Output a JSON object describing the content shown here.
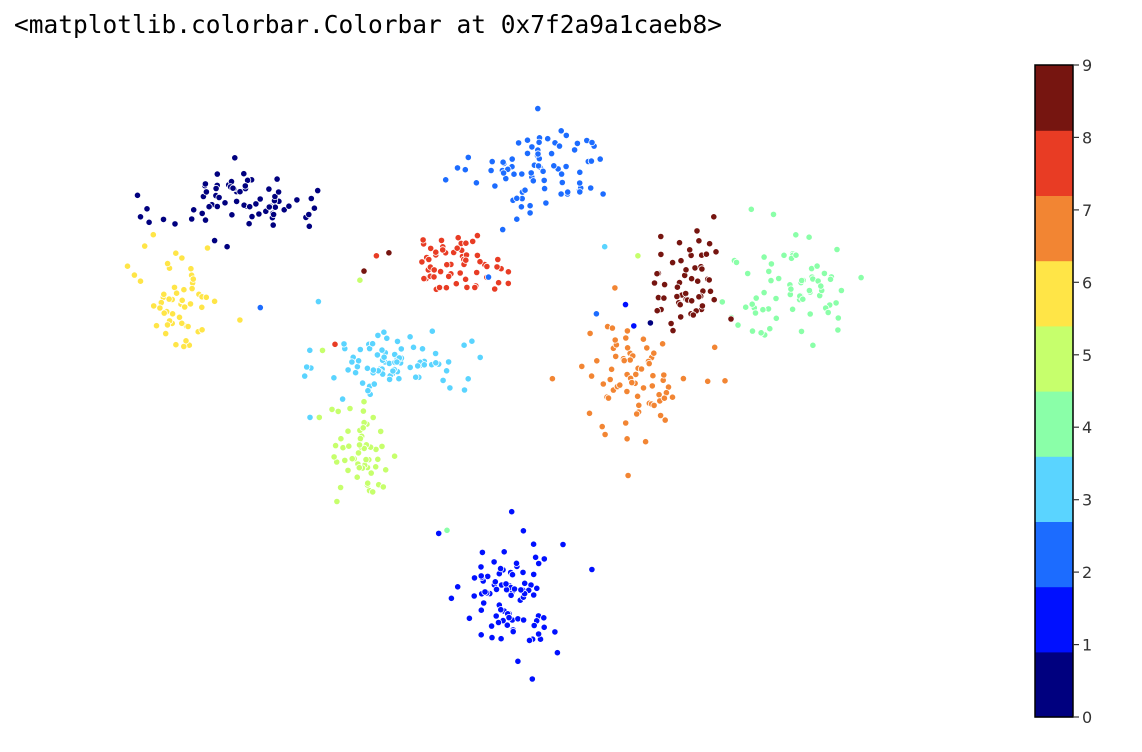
{
  "cell_output": {
    "text": "<matplotlib.colorbar.Colorbar at 0x7f2a9a1caeb8>"
  },
  "colors": {
    "point_outline": "#ffffff",
    "colorbar_frame": "#000000",
    "tick_text": "#333333"
  },
  "chart_data": {
    "type": "scatter",
    "title": "",
    "xlabel": "",
    "ylabel": "",
    "axes_visible": false,
    "grid": false,
    "marker": "filled circle with white edge",
    "x_range": [
      0,
      100
    ],
    "y_range": [
      0,
      100
    ],
    "colormap": "jet",
    "colorbar": {
      "position": "right",
      "range": [
        0,
        9
      ],
      "n_discrete_colors": 10,
      "ticks": [
        "0",
        "1",
        "2",
        "3",
        "4",
        "5",
        "6",
        "7",
        "8",
        "9"
      ],
      "colors": [
        "#00007f",
        "#0010ff",
        "#1c6cff",
        "#5ad4ff",
        "#8affa8",
        "#c6ff6c",
        "#ffe547",
        "#f28533",
        "#e83c24",
        "#761510"
      ]
    },
    "clusters": [
      {
        "label": 0,
        "center": [
          14.5,
          82.0
        ],
        "spread": [
          6.5,
          3.2
        ],
        "count": 70,
        "shape": "arc"
      },
      {
        "label": 1,
        "center": [
          47.8,
          16.5
        ],
        "spread": [
          4.0,
          7.0
        ],
        "count": 90
      },
      {
        "label": 2,
        "center": [
          51.5,
          86.0
        ],
        "spread": [
          5.5,
          5.0
        ],
        "count": 80
      },
      {
        "label": 3,
        "center": [
          33.5,
          54.5
        ],
        "spread": [
          5.5,
          3.5
        ],
        "count": 85
      },
      {
        "label": 4,
        "center": [
          81.5,
          67.0
        ],
        "spread": [
          6.0,
          6.0
        ],
        "count": 70
      },
      {
        "label": 5,
        "center": [
          30.0,
          39.0
        ],
        "spread": [
          2.8,
          5.5
        ],
        "count": 55
      },
      {
        "label": 6,
        "center": [
          8.0,
          65.5
        ],
        "spread": [
          3.2,
          6.0
        ],
        "count": 55
      },
      {
        "label": 7,
        "center": [
          62.5,
          52.0
        ],
        "spread": [
          4.5,
          6.5
        ],
        "count": 75
      },
      {
        "label": 8,
        "center": [
          41.0,
          71.0
        ],
        "spread": [
          4.0,
          3.0
        ],
        "count": 60
      },
      {
        "label": 9,
        "center": [
          69.0,
          67.0
        ],
        "spread": [
          3.0,
          6.0
        ],
        "count": 55
      }
    ],
    "stray_points": [
      {
        "label": 0,
        "x": 12.0,
        "y": 74.5
      },
      {
        "label": 0,
        "x": 13.5,
        "y": 73.5
      },
      {
        "label": 2,
        "x": 17.5,
        "y": 63.5
      },
      {
        "label": 3,
        "x": 24.5,
        "y": 64.5
      },
      {
        "label": 1,
        "x": 39.0,
        "y": 26.5
      },
      {
        "label": 4,
        "x": 40.0,
        "y": 27.0
      },
      {
        "label": 2,
        "x": 45.0,
        "y": 68.5
      },
      {
        "label": 2,
        "x": 58.0,
        "y": 62.5
      },
      {
        "label": 3,
        "x": 43.0,
        "y": 58.0
      },
      {
        "label": 3,
        "x": 23.5,
        "y": 45.5
      },
      {
        "label": 8,
        "x": 26.5,
        "y": 57.5
      },
      {
        "label": 8,
        "x": 31.5,
        "y": 72.0
      },
      {
        "label": 9,
        "x": 30.0,
        "y": 69.5
      },
      {
        "label": 9,
        "x": 33.0,
        "y": 72.5
      },
      {
        "label": 5,
        "x": 29.5,
        "y": 68.0
      },
      {
        "label": 5,
        "x": 25.0,
        "y": 56.5
      },
      {
        "label": 7,
        "x": 73.5,
        "y": 51.5
      },
      {
        "label": 3,
        "x": 59.0,
        "y": 73.5
      },
      {
        "label": 1,
        "x": 61.5,
        "y": 64.0
      },
      {
        "label": 1,
        "x": 62.5,
        "y": 60.5
      },
      {
        "label": 5,
        "x": 63.0,
        "y": 72.0
      },
      {
        "label": 0,
        "x": 64.5,
        "y": 61.0
      }
    ]
  }
}
